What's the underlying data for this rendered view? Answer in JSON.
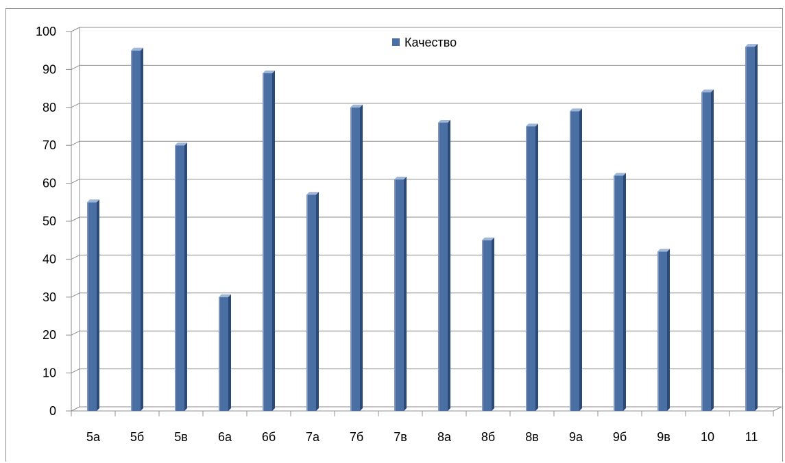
{
  "chart_data": {
    "type": "bar",
    "style": "3d-column",
    "categories": [
      "5а",
      "5б",
      "5в",
      "6а",
      "6б",
      "7а",
      "7б",
      "7в",
      "8а",
      "8б",
      "8в",
      "9а",
      "9б",
      "9в",
      "10",
      "11"
    ],
    "series": [
      {
        "name": "Качество",
        "values": [
          55,
          95,
          70,
          30,
          89,
          57,
          80,
          61,
          76,
          45,
          75,
          79,
          62,
          42,
          84,
          96
        ],
        "color": "#4a6fa5"
      }
    ],
    "ylim": [
      0,
      100
    ],
    "yticks": [
      "0",
      "10",
      "20",
      "30",
      "40",
      "50",
      "60",
      "70",
      "80",
      "90",
      "100"
    ],
    "grid": true,
    "legend_position": "top-center",
    "colors": {
      "bar_front": "#4a6fa5",
      "bar_side": "#2b4a78",
      "bar_top": "#9fb6d6",
      "grid": "#8c8c8c"
    }
  }
}
